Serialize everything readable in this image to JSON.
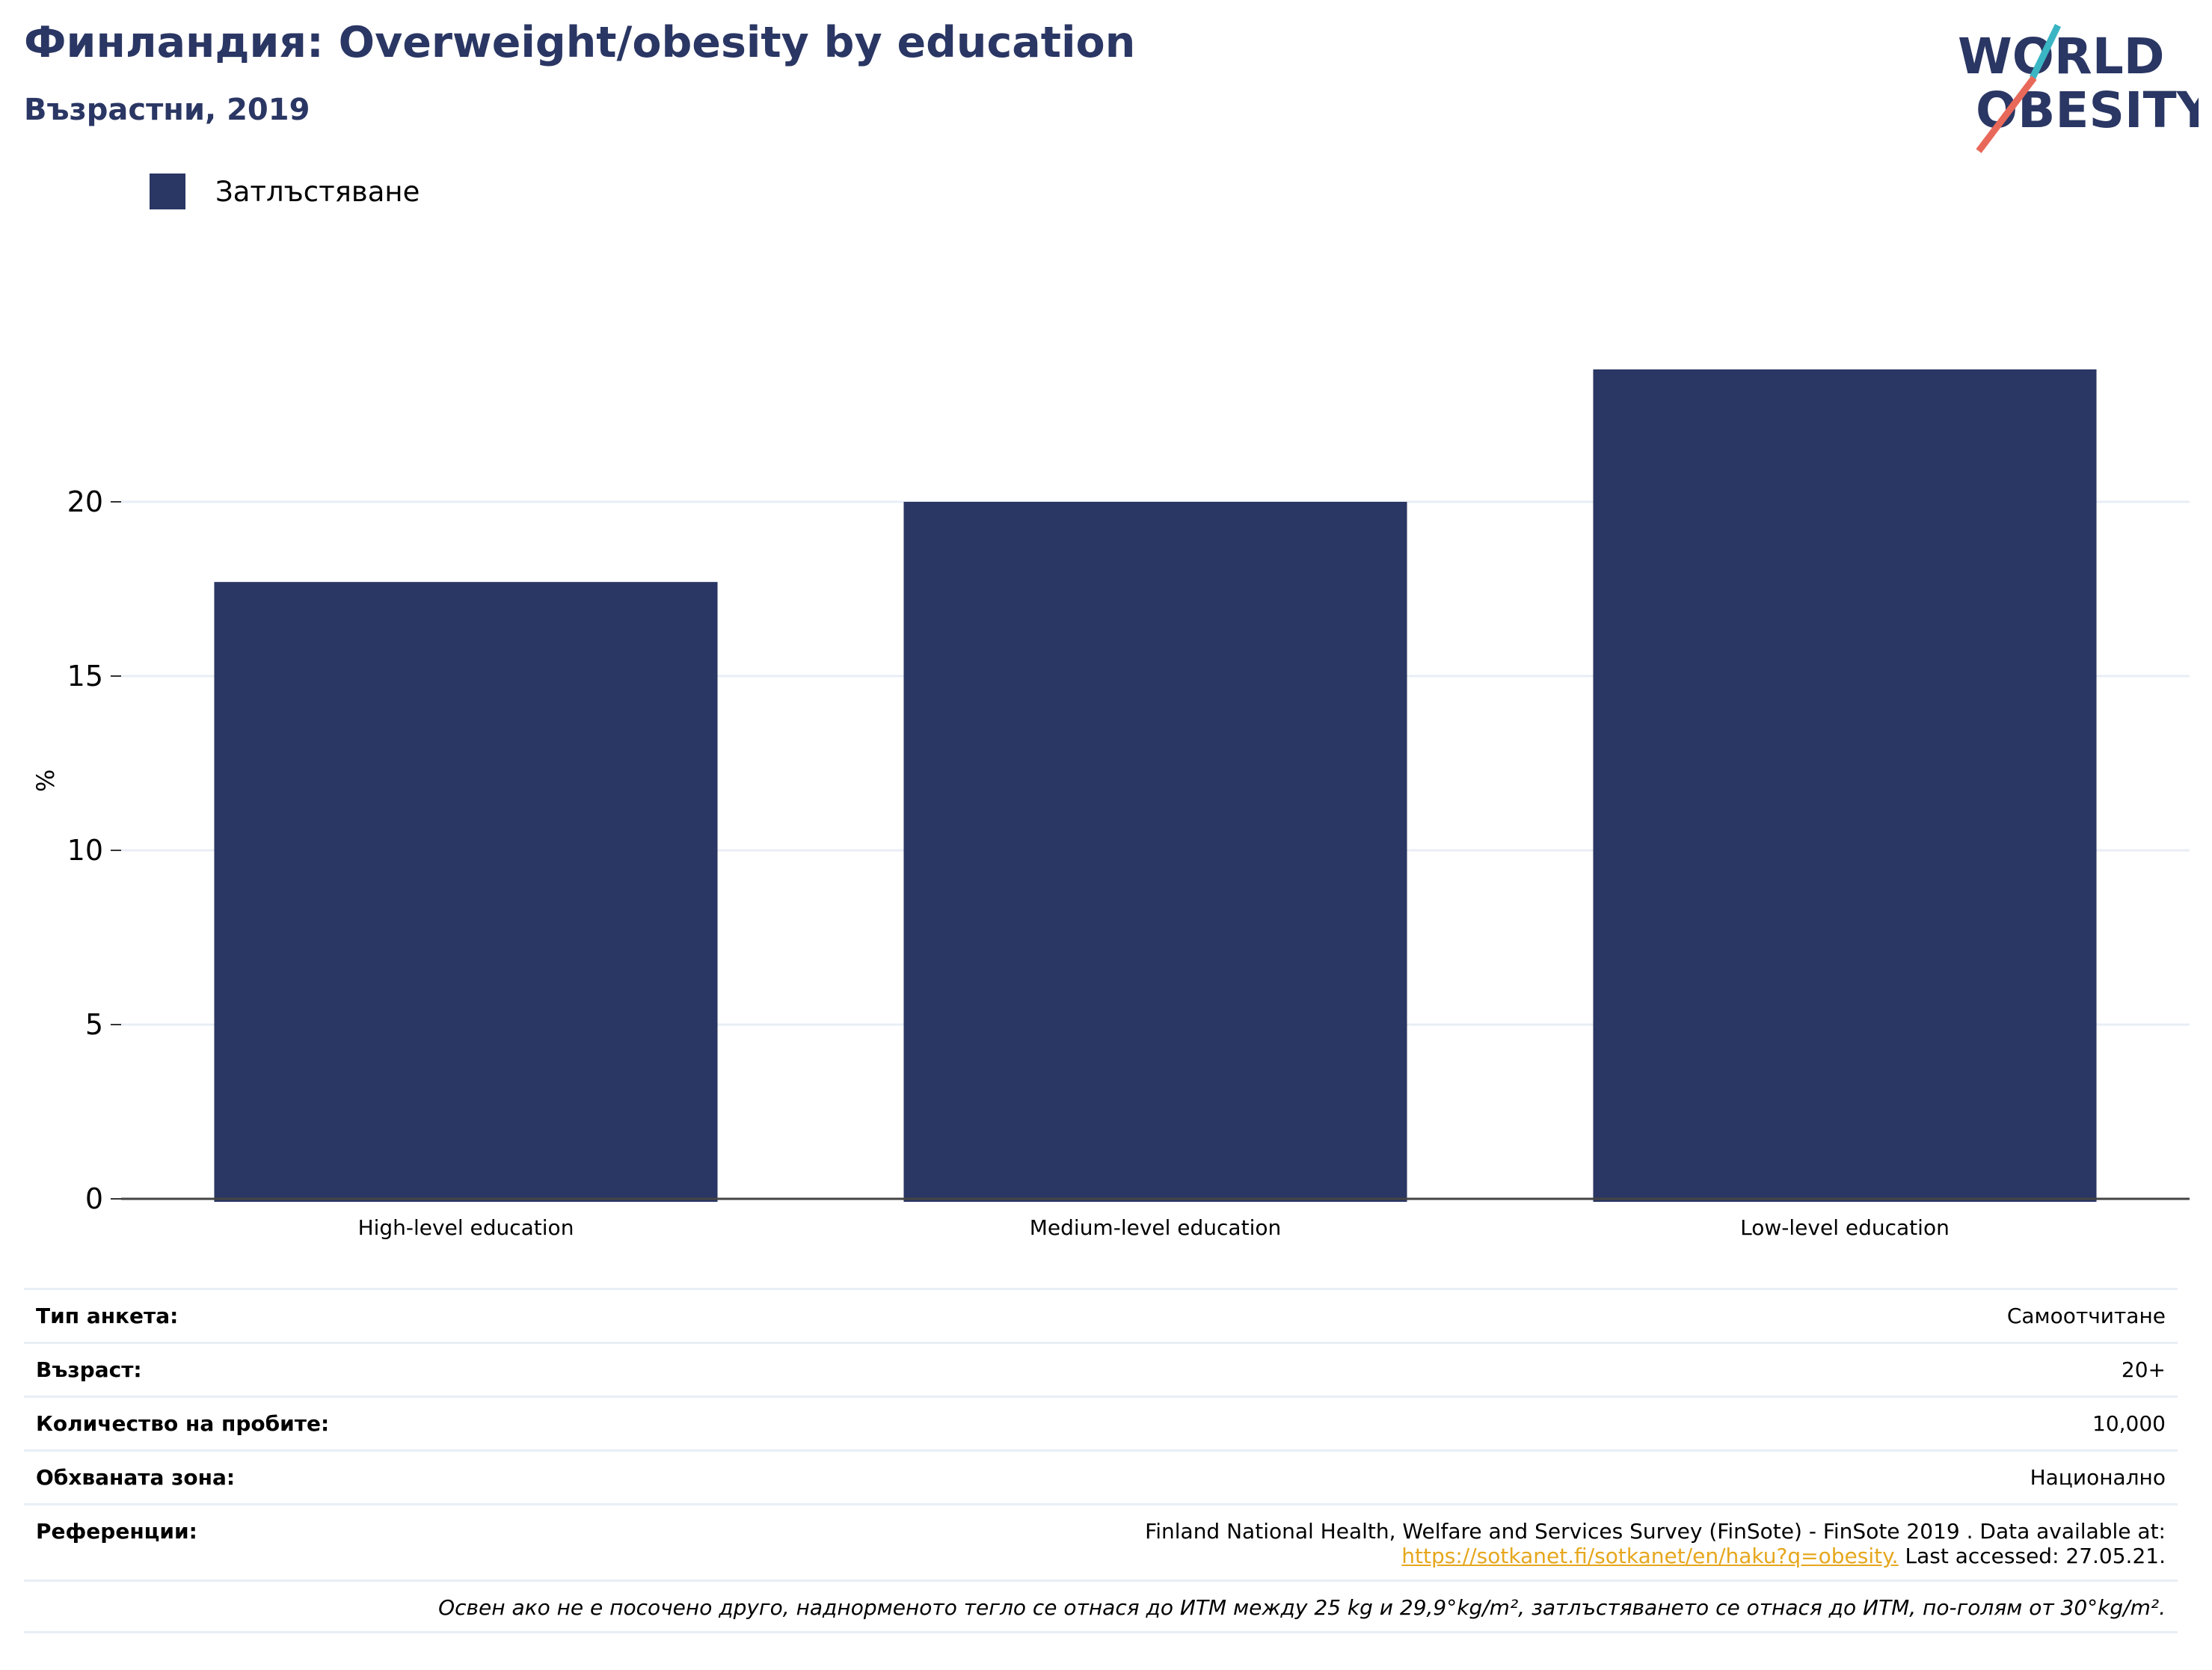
{
  "header": {
    "title": "Финландия: Overweight/obesity by education",
    "subtitle": "Възрастни, 2019"
  },
  "logo": {
    "line1": "WORLD",
    "line2": "OBESITY",
    "colors": {
      "navy": "#2a3663",
      "teal": "#3ab5c4",
      "coral": "#e8695a"
    }
  },
  "legend": {
    "items": [
      {
        "label": "Затлъстяване",
        "color": "#2a3663"
      }
    ]
  },
  "chart_data": {
    "type": "bar",
    "categories": [
      "High-level education",
      "Medium-level education",
      "Low-level education"
    ],
    "series": [
      {
        "name": "Затлъстяване",
        "values": [
          17.7,
          20.0,
          23.8
        ],
        "color": "#2a3663"
      }
    ],
    "ylabel": "%",
    "xlabel": "",
    "ylim": [
      0,
      24
    ],
    "yticks": [
      "0",
      "5",
      "10",
      "15",
      "20"
    ],
    "grid": true,
    "legend_position": "top-left"
  },
  "meta": {
    "rows": [
      {
        "label": "Тип анкета:",
        "value": "Самоотчитане"
      },
      {
        "label": "Възраст:",
        "value": "20+"
      },
      {
        "label": "Количество на пробите:",
        "value": "10,000"
      },
      {
        "label": "Обхваната зона:",
        "value": "Национално"
      }
    ],
    "reference": {
      "label": "Референции:",
      "text1": "Finland National Health, Welfare and Services Survey (FinSote) - FinSote 2019 . Data available at:",
      "link": "https://sotkanet.fi/sotkanet/en/haku?q=obesity.",
      "text2": " Last accessed: 27.05.21."
    },
    "note": "Освен ако не е посочено друго, наднорменото тегло се отнася до ИТМ между 25 kg и 29,9°kg/m², затлъстяването се отнася до ИТМ, по-голям от 30°kg/m²."
  }
}
